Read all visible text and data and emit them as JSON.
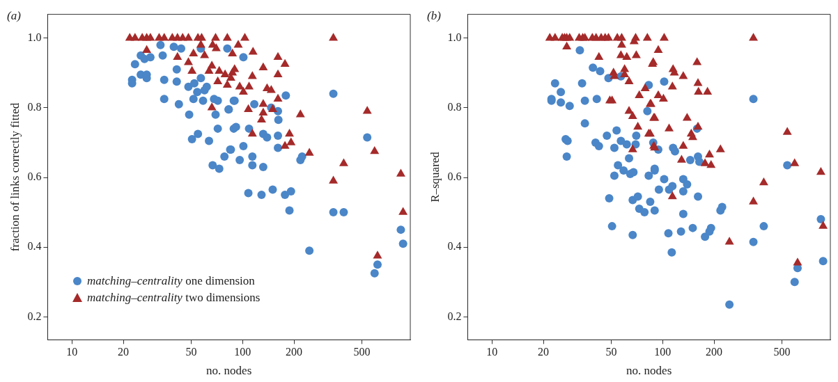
{
  "chart_data": [
    {
      "type": "scatter",
      "title": "(a)",
      "xlabel": "no. nodes",
      "ylabel": "fraction of links correctly fitted",
      "log": "x",
      "xlim": [
        7.2,
        960
      ],
      "xticks": [
        10,
        20,
        50,
        100,
        200,
        500
      ],
      "ylim": [
        0.134,
        1.068
      ],
      "yticks": [
        0.2,
        0.4,
        0.6,
        0.8,
        {
          "value": 1,
          "label": "1.0"
        }
      ],
      "legend": "bottom left",
      "series": [
        {
          "name": "matching–centrality one dimension",
          "color": "#4a86c8",
          "marker": "circle",
          "x": [
            33,
            39.5,
            43.6,
            34,
            25.3,
            26.6,
            28.8,
            23.4,
            81.3,
            56.9,
            22.5,
            22.5,
            25.3,
            27.4,
            27.4,
            34.7,
            41.1,
            41.1,
            48.1,
            52.1,
            56.9,
            59.8,
            61.6,
            54.2,
            51.5,
            34.7,
            42.3,
            58.6,
            68,
            71.5,
            88.7,
            82.8,
            69.4,
            48.6,
            54.7,
            50.5,
            63.5,
            71.5,
            88.7,
            84.5,
            78.2,
            66.7,
            72.9,
            101,
            179,
            89.7,
            117,
            147,
            161,
            162,
            82.8,
            91.4,
            109,
            132,
            139,
            161,
            161,
            85.3,
            101,
            96.1,
            114,
            114,
            132,
            218,
            223,
            108,
            129,
            150,
            177,
            192,
            188,
            246,
            340,
            537,
            340,
            391,
            845,
            871,
            617,
            593
          ],
          "values": [
            0.98,
            0.975,
            0.97,
            0.95,
            0.95,
            0.94,
            0.945,
            0.925,
            0.97,
            0.97,
            0.88,
            0.87,
            0.895,
            0.895,
            0.885,
            0.88,
            0.91,
            0.875,
            0.86,
            0.87,
            0.885,
            0.85,
            0.86,
            0.845,
            0.825,
            0.825,
            0.81,
            0.82,
            0.825,
            0.82,
            0.82,
            0.795,
            0.78,
            0.78,
            0.725,
            0.71,
            0.705,
            0.74,
            0.74,
            0.68,
            0.66,
            0.635,
            0.625,
            0.945,
            0.835,
            0.82,
            0.81,
            0.8,
            0.79,
            0.765,
            0.795,
            0.745,
            0.74,
            0.725,
            0.715,
            0.72,
            0.685,
            0.68,
            0.69,
            0.65,
            0.66,
            0.635,
            0.63,
            0.65,
            0.66,
            0.555,
            0.55,
            0.565,
            0.55,
            0.56,
            0.505,
            0.39,
            0.84,
            0.715,
            0.5,
            0.5,
            0.45,
            0.41,
            0.35,
            0.325
          ]
        },
        {
          "name": "matching–centrality two dimensions",
          "color": "#a52a2a",
          "marker": "triangle",
          "x": [
            21.8,
            23.4,
            25.8,
            27.4,
            28.8,
            32.4,
            34.7,
            38.7,
            41.5,
            44.5,
            48.1,
            54.7,
            57.5,
            69.4,
            81.3,
            103,
            340,
            27.4,
            41.5,
            51.5,
            56.9,
            59.8,
            66.7,
            70,
            48.1,
            50.5,
            63.5,
            66,
            72.9,
            78.9,
            71.5,
            81.3,
            87.1,
            66,
            94.2,
            87.1,
            115,
            161,
            177,
            132,
            89.7,
            114,
            161,
            85.3,
            96.1,
            109,
            101,
            139,
            147,
            161,
            132,
            108,
            150,
            132,
            129,
            218,
            114,
            188,
            192,
            177,
            246,
            537,
            593,
            391,
            340,
            845,
            871,
            617
          ],
          "values": [
            1,
            1,
            1,
            1,
            1,
            1,
            1,
            1,
            1,
            1,
            1,
            1,
            1,
            1,
            1,
            1,
            1,
            0.965,
            0.945,
            0.955,
            0.98,
            0.95,
            0.98,
            0.97,
            0.93,
            0.905,
            0.905,
            0.92,
            0.905,
            0.895,
            0.875,
            0.865,
            0.9,
            0.8,
            0.98,
            0.955,
            0.96,
            0.945,
            0.925,
            0.915,
            0.91,
            0.89,
            0.895,
            0.885,
            0.86,
            0.86,
            0.845,
            0.855,
            0.85,
            0.825,
            0.81,
            0.795,
            0.795,
            0.785,
            0.765,
            0.78,
            0.725,
            0.725,
            0.7,
            0.69,
            0.67,
            0.79,
            0.675,
            0.64,
            0.59,
            0.61,
            0.5,
            0.375
          ]
        }
      ]
    },
    {
      "type": "scatter",
      "title": "(b)",
      "xlabel": "no. nodes",
      "ylabel": "R–squared",
      "log": "x",
      "xlim": [
        7.2,
        960
      ],
      "xticks": [
        10,
        20,
        50,
        100,
        200,
        500
      ],
      "ylim": [
        0.134,
        1.068
      ],
      "yticks": [
        0.2,
        0.4,
        0.6,
        0.8,
        {
          "value": 1,
          "label": "1.0"
        }
      ],
      "series": [
        {
          "color": "#4a86c8",
          "marker": "circle",
          "x": [
            32.7,
            23.4,
            25.3,
            22.3,
            22.3,
            25.3,
            28.5,
            33.7,
            35,
            41.1,
            39,
            43,
            48.1,
            56.9,
            82.8,
            81.3,
            35,
            27,
            27.7,
            27.4,
            47.1,
            53.7,
            40.4,
            42.3,
            52.1,
            56.9,
            61.6,
            69.4,
            70,
            63.5,
            54.7,
            59,
            64.5,
            67.4,
            52.1,
            82.8,
            88,
            89.7,
            48.6,
            66.7,
            71.5,
            72.9,
            78.2,
            84.5,
            89.7,
            50.5,
            66.7,
            102,
            159,
            94.2,
            115,
            118,
            145,
            161,
            164,
            89.7,
            102,
            132,
            139,
            95,
            109,
            114,
            132,
            161,
            132,
            223,
            218,
            108,
            128,
            150,
            177,
            188,
            192,
            113,
            246,
            340,
            537,
            391,
            340,
            845,
            871,
            617,
            593
          ],
          "values": [
            0.965,
            0.87,
            0.845,
            0.825,
            0.82,
            0.815,
            0.805,
            0.87,
            0.82,
            0.825,
            0.915,
            0.905,
            0.885,
            0.89,
            0.865,
            0.79,
            0.755,
            0.71,
            0.705,
            0.66,
            0.72,
            0.735,
            0.7,
            0.69,
            0.685,
            0.705,
            0.695,
            0.695,
            0.72,
            0.655,
            0.635,
            0.62,
            0.61,
            0.615,
            0.605,
            0.605,
            0.7,
            0.62,
            0.54,
            0.535,
            0.545,
            0.51,
            0.5,
            0.53,
            0.505,
            0.46,
            0.435,
            0.875,
            0.74,
            0.68,
            0.685,
            0.675,
            0.65,
            0.66,
            0.645,
            0.625,
            0.595,
            0.595,
            0.58,
            0.565,
            0.565,
            0.575,
            0.56,
            0.545,
            0.495,
            0.515,
            0.505,
            0.44,
            0.445,
            0.455,
            0.43,
            0.445,
            0.455,
            0.385,
            0.235,
            0.825,
            0.635,
            0.46,
            0.415,
            0.48,
            0.36,
            0.34,
            0.3
          ]
        },
        {
          "color": "#a52a2a",
          "marker": "triangle",
          "x": [
            21.8,
            23.4,
            25.8,
            26.6,
            27.4,
            28.5,
            32.4,
            34,
            35,
            38.7,
            40.7,
            43.6,
            46,
            48.1,
            54.2,
            57.5,
            69.4,
            81.3,
            102,
            340,
            27.4,
            42.3,
            57.5,
            56.9,
            61.6,
            70,
            68,
            51.5,
            59.8,
            59.8,
            63.5,
            52.1,
            50.5,
            49,
            72.9,
            78.9,
            63.5,
            66.7,
            71.5,
            82.8,
            87.1,
            84.5,
            88.7,
            88.7,
            66.7,
            94.2,
            88,
            115,
            117,
            132,
            159,
            161,
            162,
            183,
            114,
            94.2,
            101,
            85.3,
            89.7,
            84.5,
            139,
            109,
            161,
            147,
            150,
            89.7,
            132,
            129,
            218,
            188,
            177,
            192,
            114,
            246,
            537,
            593,
            845,
            391,
            340,
            871,
            617
          ],
          "values": [
            1,
            1,
            1,
            1,
            1,
            1,
            1,
            1,
            1,
            1,
            1,
            1,
            1,
            1,
            1,
            1,
            1,
            1,
            1,
            1,
            0.975,
            0.945,
            0.98,
            0.95,
            0.945,
            0.95,
            0.99,
            0.9,
            0.91,
            0.895,
            0.875,
            0.89,
            0.82,
            0.82,
            0.835,
            0.855,
            0.79,
            0.775,
            0.745,
            0.725,
            0.925,
            0.81,
            0.77,
            0.69,
            0.68,
            0.965,
            0.93,
            0.91,
            0.9,
            0.89,
            0.93,
            0.87,
            0.845,
            0.845,
            0.86,
            0.835,
            0.825,
            0.81,
            0.77,
            0.725,
            0.77,
            0.74,
            0.745,
            0.725,
            0.715,
            0.685,
            0.69,
            0.65,
            0.68,
            0.665,
            0.64,
            0.635,
            0.545,
            0.415,
            0.73,
            0.64,
            0.615,
            0.585,
            0.53,
            0.46,
            0.355
          ]
        }
      ]
    }
  ]
}
